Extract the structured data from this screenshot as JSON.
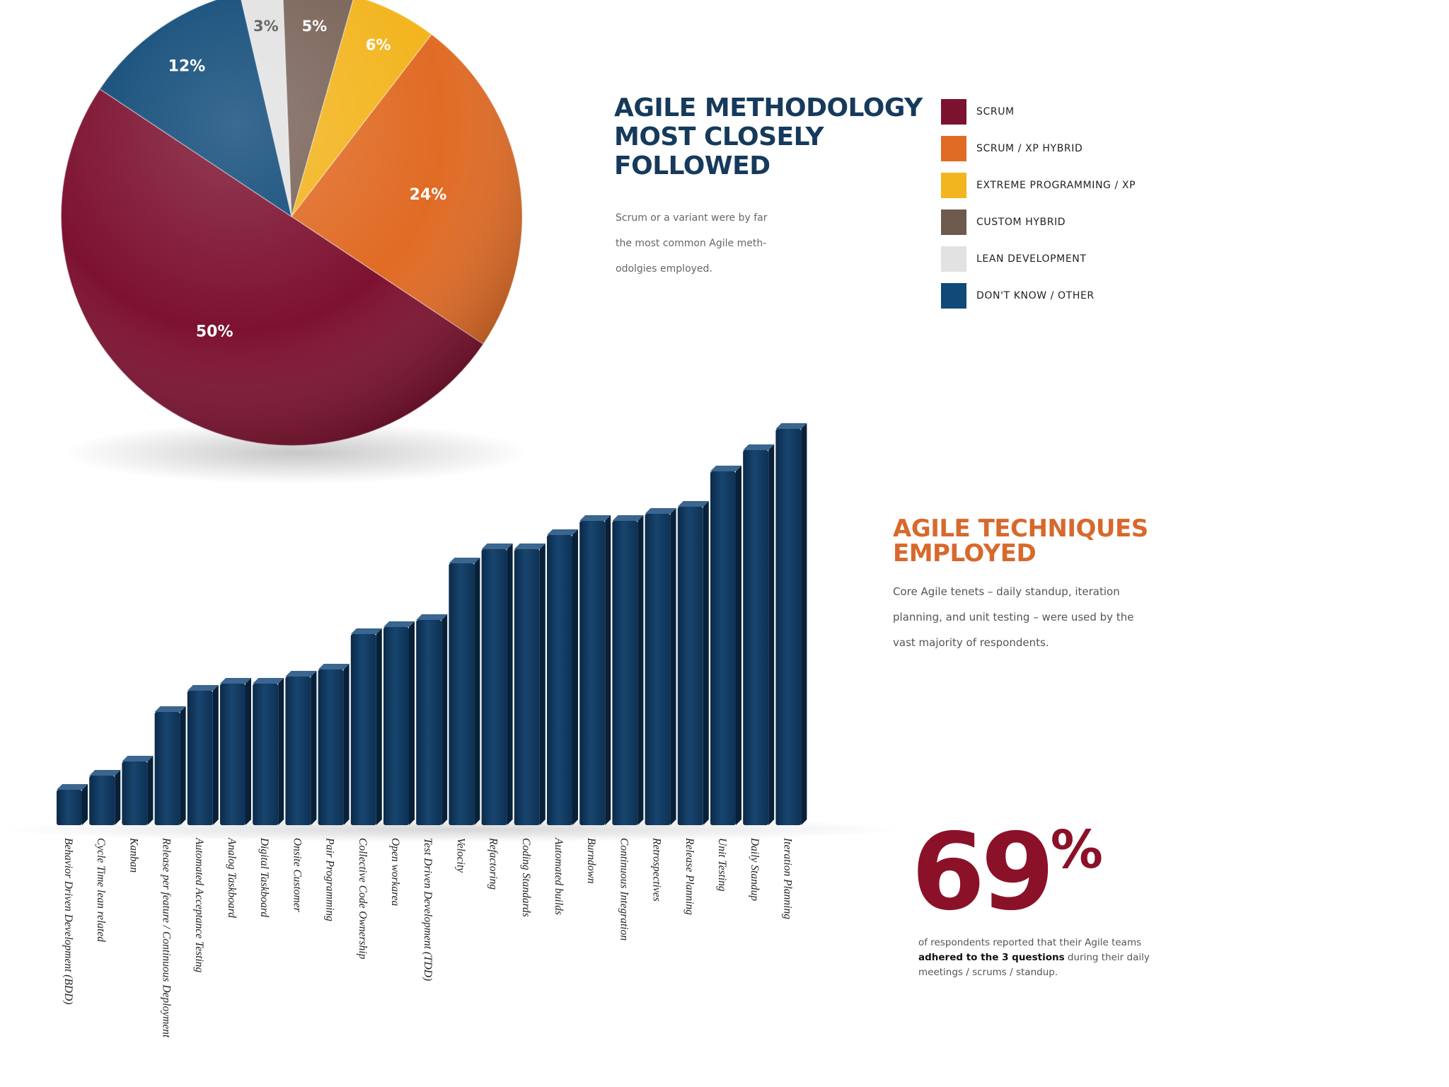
{
  "chart_data": [
    {
      "type": "pie",
      "title": "AGILE METHODOLOGY MOST CLOSELY FOLLOWED",
      "title_lines": [
        "AGILE METHODOLOGY",
        "MOST CLOSELY",
        "FOLLOWED"
      ],
      "description": "Scrum or a variant were by far the most common Agile meth- odolgies employed.",
      "description_lines": [
        "Scrum or a variant were by far",
        "the most common Agile meth-",
        "odolgies employed."
      ],
      "slices": [
        {
          "label": "LEAN DEVELOPMENT",
          "value": 3,
          "display": "3%",
          "color": "#e2e2e2",
          "text_color": "#666666"
        },
        {
          "label": "CUSTOM HYBRID",
          "value": 5,
          "display": "5%",
          "color": "#7a6459",
          "text_color": "#ffffff"
        },
        {
          "label": "EXTREME PROGRAMMING / XP",
          "value": 6,
          "display": "6%",
          "color": "#f3b51f",
          "text_color": "#ffffff"
        },
        {
          "label": "SCRUM / XP HYBRID",
          "value": 24,
          "display": "24%",
          "color": "#e06b25",
          "text_color": "#ffffff"
        },
        {
          "label": "SCRUM",
          "value": 50,
          "display": "50%",
          "color": "#7d1230",
          "text_color": "#ffffff"
        },
        {
          "label": "DON'T KNOW / OTHER",
          "value": 12,
          "display": "12%",
          "color": "#0f4a78",
          "text_color": "#ffffff"
        }
      ],
      "legend": [
        {
          "label": "SCRUM",
          "color": "#7d1230"
        },
        {
          "label": "SCRUM / XP HYBRID",
          "color": "#e06b25"
        },
        {
          "label": "EXTREME PROGRAMMING / XP",
          "color": "#f3b51f"
        },
        {
          "label": "CUSTOM HYBRID",
          "color": "#6f5a4f"
        },
        {
          "label": "LEAN DEVELOPMENT",
          "color": "#e2e2e2"
        },
        {
          "label": "DON'T KNOW / OTHER",
          "color": "#0f4a78"
        }
      ],
      "legend_position": "right"
    },
    {
      "type": "bar",
      "title": "AGILE TECHNIQUES EMPLOYED",
      "title_lines": [
        "AGILE TECHNIQUES",
        "EMPLOYED"
      ],
      "description": "Core Agile tenets – daily standup, iteration planning, and unit testing – were used by the vast majority of respondents.",
      "description_lines": [
        "Core Agile tenets – daily standup, iteration",
        "planning, and unit testing – were used by the",
        "vast majority of respondents."
      ],
      "bar_color": "#123a5e",
      "axes_visible": false,
      "categories": [
        "Behavior Driven Development (BDD)",
        "Cycle Time lean related",
        "Kanban",
        "Release per feature / Continuous Deployment",
        "Automated Acceptance Testing",
        "Analog Taskboard",
        "Digital Taskboard",
        "Onsite Customer",
        "Pair Programming",
        "Collective Code Ownership",
        "Open workarea",
        "Test Driven Development (TDD)",
        "Velocity",
        "Refactoring",
        "Coding Standards",
        "Automated builds",
        "Burndown",
        "Continuous Integration",
        "Retrospectives",
        "Release Planning",
        "Unit Testing",
        "Daily Standup",
        "Iteration Planning"
      ],
      "values": [
        5,
        7,
        9,
        16,
        19,
        20,
        20,
        21,
        22,
        27,
        28,
        29,
        37,
        39,
        39,
        41,
        43,
        43,
        44,
        45,
        50,
        53,
        56
      ]
    }
  ],
  "stat": {
    "value": "69",
    "unit": "%",
    "note_before": "of respondents reported that their Agile teams ",
    "note_bold": "adhered to the 3 questions",
    "note_after": " during their daily meetings / scrums / standup."
  }
}
